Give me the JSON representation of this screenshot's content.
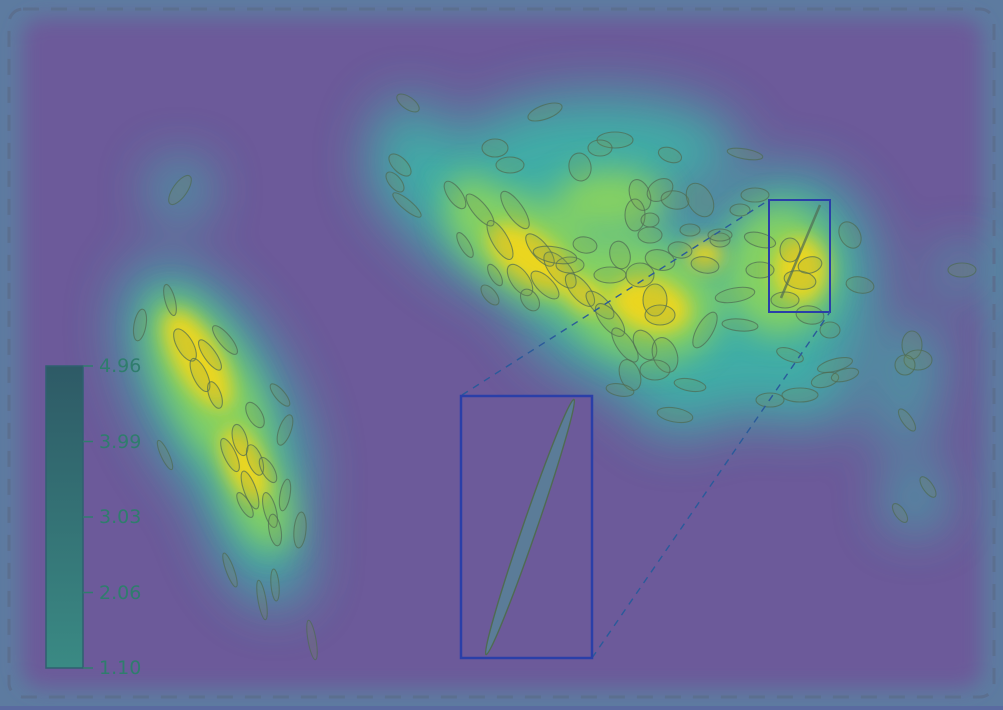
{
  "colorbar": {
    "ticks": [
      {
        "value": "4.96"
      },
      {
        "value": "3.99"
      },
      {
        "value": "3.03"
      },
      {
        "value": "2.06"
      },
      {
        "value": "1.10"
      }
    ],
    "range": [
      1.1,
      4.96
    ]
  },
  "colors": {
    "background": "#6c5a9a",
    "border_dashes": "#5b6f8f",
    "heat_low": "#3ab8a8",
    "heat_mid": "#8ed65a",
    "heat_high": "#f1d61f",
    "ellipse_stroke": "#4f6b52",
    "inset_box": "#2a3fa8",
    "colorbar_top": "#2e5a66",
    "colorbar_bottom": "#3a8a84",
    "tick_text": "#2f7d6d"
  }
}
